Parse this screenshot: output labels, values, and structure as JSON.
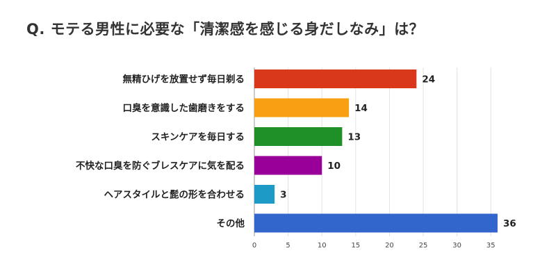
{
  "chart_data": {
    "type": "bar",
    "orientation": "horizontal",
    "title": "Q. モテる男性に必要な「清潔感を感じる身だしなみ」は？",
    "categories": [
      "無精ひげを放置せず毎日剃る",
      "口臭を意識した歯磨きをする",
      "スキンケアを毎日する",
      "不快な口臭を防ぐブレスケアに気を配る",
      "ヘアスタイルと髭の形を合わせる",
      "その他"
    ],
    "values": [
      24,
      14,
      13,
      10,
      3,
      36
    ],
    "colors": [
      "#d9391a",
      "#f8a012",
      "#1f8f28",
      "#990099",
      "#1e9ac6",
      "#3366cc"
    ],
    "xlim": [
      0,
      36
    ],
    "xticks": [
      0,
      5,
      10,
      15,
      20,
      25,
      30,
      35
    ],
    "grid": true,
    "xlabel": "",
    "ylabel": ""
  }
}
